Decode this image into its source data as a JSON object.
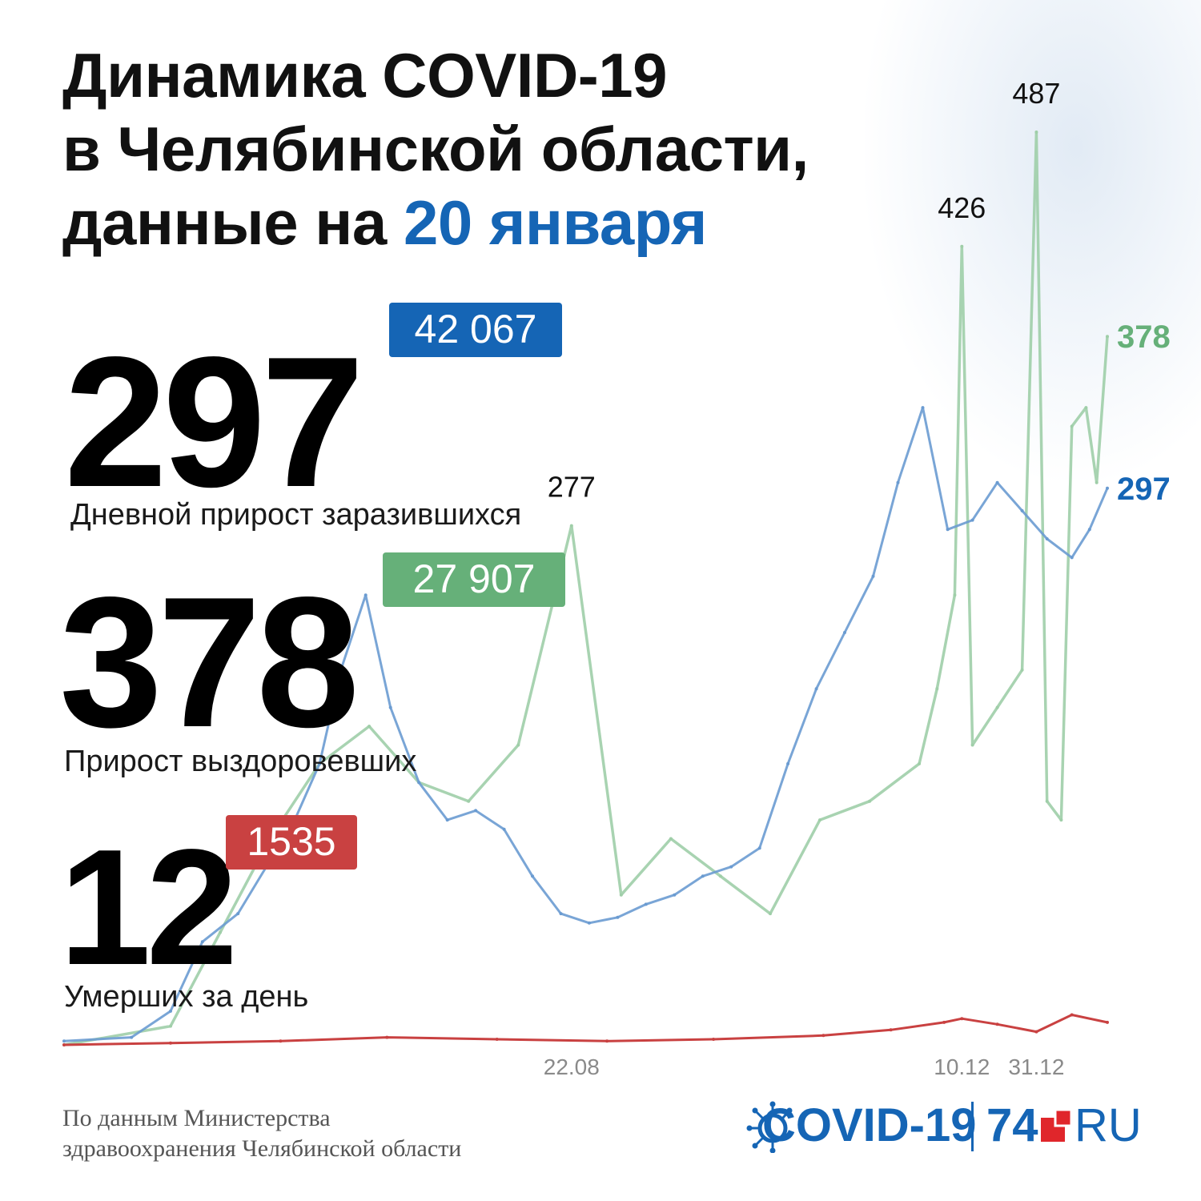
{
  "title": {
    "line1": "Динамика COVID-19",
    "line2": "в Челябинской области,",
    "line3_prefix": "данные на ",
    "line3_accent": "20 января"
  },
  "stats": {
    "cases": {
      "value": "297",
      "label": "Дневной прирост заразившихся",
      "total": "42 067"
    },
    "recovered": {
      "value": "378",
      "label": "Прирост выздоровевших",
      "total": "27 907"
    },
    "deaths": {
      "value": "12",
      "label": "Умерших за день",
      "total": "1535"
    }
  },
  "source": {
    "line1": "По данным Министерства",
    "line2": "здравоохранения Челябинской области"
  },
  "logo": {
    "covid": "COVID-19",
    "num": "74",
    "ru": "RU"
  },
  "colors": {
    "cases": "#6a9bd1",
    "cases_end": "#1565b5",
    "recovered": "#9fcea8",
    "recovered_end": "#66b079",
    "deaths": "#c94141",
    "accent": "#1565b5",
    "text": "#111111"
  },
  "chart_data": {
    "type": "line",
    "x_axis": {
      "range": [
        "2020-04-01",
        "2021-01-20"
      ],
      "ticks": [
        "22.08",
        "10.12",
        "31.12"
      ]
    },
    "y_axis": {
      "range": [
        0,
        487
      ],
      "labels": "none"
    },
    "grid": false,
    "legend": "none",
    "series": [
      {
        "key": "cases",
        "x": [
          "2020-04-01",
          "2020-04-20",
          "2020-05-01",
          "2020-05-10",
          "2020-05-20",
          "2020-05-28",
          "2020-06-05",
          "2020-06-12",
          "2020-06-18",
          "2020-06-25",
          "2020-07-02",
          "2020-07-10",
          "2020-07-18",
          "2020-07-26",
          "2020-08-03",
          "2020-08-11",
          "2020-08-19",
          "2020-08-27",
          "2020-09-04",
          "2020-09-12",
          "2020-09-20",
          "2020-09-28",
          "2020-10-06",
          "2020-10-14",
          "2020-10-22",
          "2020-10-30",
          "2020-11-07",
          "2020-11-15",
          "2020-11-22",
          "2020-11-29",
          "2020-12-06",
          "2020-12-13",
          "2020-12-20",
          "2020-12-27",
          "2021-01-03",
          "2021-01-10",
          "2021-01-15",
          "2021-01-20"
        ],
        "values": [
          2,
          4,
          18,
          55,
          70,
          95,
          120,
          150,
          200,
          240,
          180,
          140,
          120,
          125,
          115,
          90,
          70,
          65,
          68,
          75,
          80,
          90,
          95,
          105,
          150,
          190,
          220,
          250,
          300,
          340,
          275,
          280,
          300,
          285,
          270,
          260,
          275,
          297
        ]
      },
      {
        "key": "recovered",
        "x": [
          "2020-04-01",
          "2020-05-01",
          "2020-05-15",
          "2020-05-29",
          "2020-06-12",
          "2020-06-26",
          "2020-07-10",
          "2020-07-24",
          "2020-08-07",
          "2020-08-22",
          "2020-09-05",
          "2020-09-19",
          "2020-10-03",
          "2020-10-17",
          "2020-10-31",
          "2020-11-14",
          "2020-11-28",
          "2020-12-03",
          "2020-12-08",
          "2020-12-10",
          "2020-12-13",
          "2020-12-20",
          "2020-12-27",
          "2020-12-31",
          "2021-01-03",
          "2021-01-07",
          "2021-01-10",
          "2021-01-14",
          "2021-01-17",
          "2021-01-20"
        ],
        "values": [
          0,
          10,
          60,
          110,
          150,
          170,
          140,
          130,
          160,
          277,
          80,
          110,
          90,
          70,
          120,
          130,
          150,
          190,
          240,
          426,
          160,
          180,
          200,
          487,
          130,
          120,
          330,
          340,
          300,
          378
        ]
      },
      {
        "key": "deaths",
        "x": [
          "2020-04-01",
          "2020-05-01",
          "2020-06-01",
          "2020-07-01",
          "2020-08-01",
          "2020-09-01",
          "2020-10-01",
          "2020-11-01",
          "2020-11-20",
          "2020-12-05",
          "2020-12-10",
          "2020-12-20",
          "2020-12-31",
          "2021-01-10",
          "2021-01-20"
        ],
        "values": [
          0,
          1,
          2,
          4,
          3,
          2,
          3,
          5,
          8,
          12,
          14,
          11,
          7,
          16,
          12
        ]
      }
    ],
    "annotations": [
      {
        "series": "recovered",
        "x": "2020-08-22",
        "label": "277"
      },
      {
        "series": "recovered",
        "x": "2020-12-10",
        "label": "426"
      },
      {
        "series": "recovered",
        "x": "2020-12-31",
        "label": "487"
      },
      {
        "series": "recovered",
        "x": "2021-01-20",
        "label": "378"
      },
      {
        "series": "cases",
        "x": "2021-01-20",
        "label": "297"
      }
    ]
  }
}
